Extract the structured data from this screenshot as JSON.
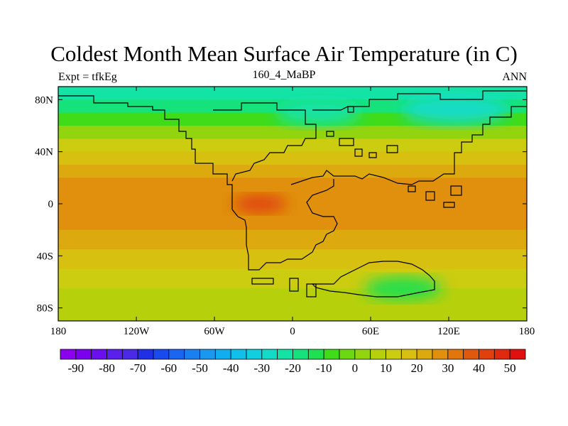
{
  "figure": {
    "title": "Coldest Month Mean Surface Air Temperature (in C)",
    "left_label": "Expt = tfkEg",
    "center_label": "160_4_MaBP",
    "right_label": "ANN"
  },
  "map": {
    "projection": "cylindrical-equidistant",
    "lon_range": [
      -180,
      180
    ],
    "lat_range": [
      -90,
      90
    ],
    "lon_ticks": [
      {
        "value": -180,
        "label": "180"
      },
      {
        "value": -120,
        "label": "120W"
      },
      {
        "value": -60,
        "label": "60W"
      },
      {
        "value": 0,
        "label": "0"
      },
      {
        "value": 60,
        "label": "60E"
      },
      {
        "value": 120,
        "label": "120E"
      },
      {
        "value": 180,
        "label": "180"
      }
    ],
    "lat_ticks": [
      {
        "value": 80,
        "label": "80N"
      },
      {
        "value": 40,
        "label": "40N"
      },
      {
        "value": 0,
        "label": "0"
      },
      {
        "value": -40,
        "label": "40S"
      },
      {
        "value": -80,
        "label": "80S"
      }
    ],
    "temperature_bands_by_latitude": [
      {
        "lat_from": 90,
        "lat_to": 80,
        "value": -25
      },
      {
        "lat_from": 80,
        "lat_to": 70,
        "value": -18
      },
      {
        "lat_from": 70,
        "lat_to": 60,
        "value": -8
      },
      {
        "lat_from": 60,
        "lat_to": 50,
        "value": 2
      },
      {
        "lat_from": 50,
        "lat_to": 40,
        "value": 10
      },
      {
        "lat_from": 40,
        "lat_to": 30,
        "value": 17
      },
      {
        "lat_from": 30,
        "lat_to": 20,
        "value": 22
      },
      {
        "lat_from": 20,
        "lat_to": -20,
        "value": 27
      },
      {
        "lat_from": -20,
        "lat_to": -35,
        "value": 22
      },
      {
        "lat_from": -35,
        "lat_to": -50,
        "value": 16
      },
      {
        "lat_from": -50,
        "lat_to": -65,
        "value": 10
      },
      {
        "lat_from": -65,
        "lat_to": -90,
        "value": 5
      }
    ],
    "regional_features": [
      {
        "name": "siberian-cold-core",
        "value": -30,
        "lon": 125,
        "lat": 72
      },
      {
        "name": "arctic-cold-pool",
        "value": -25,
        "lon": 20,
        "lat": 70
      },
      {
        "name": "tropical-warm-core",
        "value": 40,
        "lon": -25,
        "lat": 0
      },
      {
        "name": "antarctic-land-cold",
        "value": -15,
        "lon": 85,
        "lat": -65
      }
    ]
  },
  "colorbar": {
    "min": -95,
    "max": 55,
    "step": 5,
    "colors": [
      "#8c00f0",
      "#7a00ee",
      "#6a10ee",
      "#5a20ec",
      "#4a2ae6",
      "#2030e6",
      "#1a4aee",
      "#1a66f0",
      "#1a80f0",
      "#1a98f0",
      "#10aef0",
      "#10c0ea",
      "#12cfe0",
      "#12dcc8",
      "#14e3a6",
      "#16e27c",
      "#1ee050",
      "#40dc1a",
      "#6cd812",
      "#92d40e",
      "#b6d00c",
      "#cccc10",
      "#d8c010",
      "#dcaa0e",
      "#e0900c",
      "#e0760c",
      "#e0580c",
      "#e0400e",
      "#e02a10",
      "#e01010"
    ],
    "labels": [
      "-90",
      "-80",
      "-70",
      "-60",
      "-50",
      "-40",
      "-30",
      "-20",
      "-10",
      "0",
      "10",
      "20",
      "30",
      "40",
      "50"
    ]
  }
}
